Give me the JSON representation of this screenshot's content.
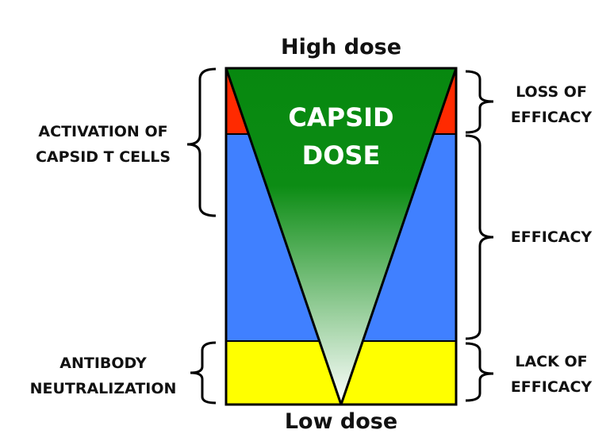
{
  "title_top": "High dose",
  "title_bottom": "Low dose",
  "center_label": [
    "CAPSID",
    "DOSE"
  ],
  "left_labels": {
    "activation": [
      "ACTIVATION OF",
      "CAPSID T CELLS"
    ],
    "antibody": [
      "ANTIBODY",
      "NEUTRALIZATION"
    ]
  },
  "right_labels": {
    "loss": [
      "LOSS OF",
      "EFFICACY"
    ],
    "efficacy": [
      "EFFICACY"
    ],
    "lack": [
      "LACK OF",
      "EFFICACY"
    ]
  },
  "colors": {
    "red": "#ff2a00",
    "blue": "#4080ff",
    "yellow": "#ffff00",
    "green": "#07880f"
  }
}
